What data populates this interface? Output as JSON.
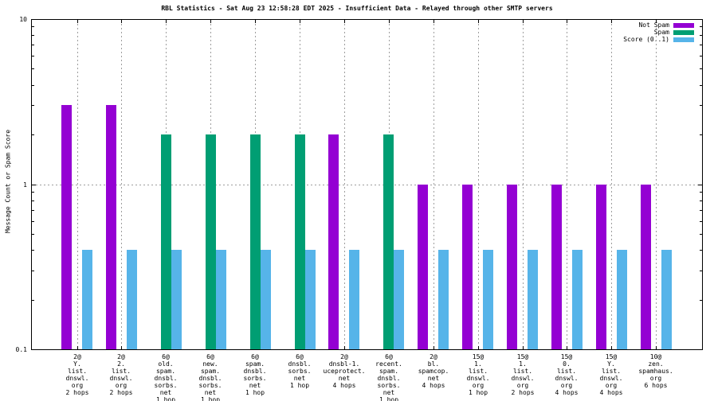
{
  "chart_data": {
    "type": "bar",
    "title": "RBL Statistics - Sat Aug 23 12:58:28 EDT 2025 - Insufficient Data - Relayed through other SMTP servers",
    "ylabel": "Message Count or Spam Score",
    "xlabel": "",
    "yscale": "log",
    "ylim": [
      0.1,
      10
    ],
    "yticks": [
      {
        "value": 0.1,
        "label": "0.1"
      },
      {
        "value": 1,
        "label": "1"
      },
      {
        "value": 10,
        "label": "10"
      }
    ],
    "grid": {
      "h_dashed_at": 1,
      "v_dashed_per_category": true
    },
    "legend_position": "top-right",
    "series": [
      {
        "name": "Not Spam",
        "slug": "not-spam",
        "color": "#9400d3",
        "values": [
          3,
          3,
          0,
          0,
          0,
          0,
          2,
          0,
          1,
          1,
          1,
          1,
          1,
          1
        ]
      },
      {
        "name": "Spam",
        "slug": "spam",
        "color": "#009e73",
        "values": [
          0,
          0,
          2,
          2,
          2,
          2,
          0,
          2,
          0,
          0,
          0,
          0,
          0,
          0
        ]
      },
      {
        "name": "Score (0..1)",
        "slug": "score",
        "color": "#56b4e9",
        "values": [
          0.4,
          0.4,
          0.4,
          0.4,
          0.4,
          0.4,
          0.4,
          0.4,
          0.4,
          0.4,
          0.4,
          0.4,
          0.4,
          0.4
        ]
      }
    ],
    "categories": [
      [
        "2@",
        "Y.",
        "list.",
        "dnswl.",
        "org",
        "2 hops"
      ],
      [
        "2@",
        "2.",
        "list.",
        "dnswl.",
        "org",
        "2 hops"
      ],
      [
        "6@",
        "old.",
        "spam.",
        "dnsbl.",
        "sorbs.",
        "net",
        "1 hop"
      ],
      [
        "6@",
        "new.",
        "spam.",
        "dnsbl.",
        "sorbs.",
        "net",
        "1 hop"
      ],
      [
        "6@",
        "spam.",
        "dnsbl.",
        "sorbs.",
        "net",
        "1 hop"
      ],
      [
        "6@",
        "dnsbl.",
        "sorbs.",
        "net",
        "1 hop"
      ],
      [
        "2@",
        "dnsbl-1.",
        "uceprotect.",
        "net",
        "4 hops"
      ],
      [
        "6@",
        "recent.",
        "spam.",
        "dnsbl.",
        "sorbs.",
        "net",
        "1 hop"
      ],
      [
        "2@",
        "bl.",
        "spamcop.",
        "net",
        "4 hops"
      ],
      [
        "15@",
        "1.",
        "list.",
        "dnswl.",
        "org",
        "1 hop"
      ],
      [
        "15@",
        "1.",
        "list.",
        "dnswl.",
        "org",
        "2 hops"
      ],
      [
        "15@",
        "0.",
        "list.",
        "dnswl.",
        "org",
        "4 hops"
      ],
      [
        "15@",
        "Y.",
        "list.",
        "dnswl.",
        "org",
        "4 hops"
      ],
      [
        "10@",
        "zen.",
        "spamhaus.",
        "org",
        "6 hops"
      ]
    ]
  }
}
